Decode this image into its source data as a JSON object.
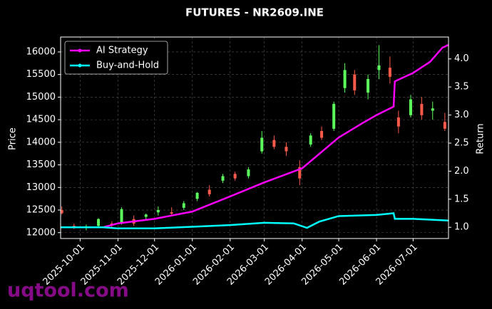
{
  "chart_data": {
    "type": "candlestick",
    "title": "FUTURES - NR2609.INE",
    "y_label": "Price",
    "y2_label": "Return",
    "watermark": "uqtool.com",
    "x": [
      "2025-09-16",
      "2025-09-26",
      "2025-10-06",
      "2025-10-16",
      "2025-10-27",
      "2025-11-04",
      "2025-11-14",
      "2025-11-24",
      "2025-12-04",
      "2025-12-15",
      "2025-12-25",
      "2026-01-05",
      "2026-01-15",
      "2026-01-26",
      "2026-02-05",
      "2026-02-16",
      "2026-02-27",
      "2026-03-09",
      "2026-03-19",
      "2026-03-30",
      "2026-04-08",
      "2026-04-17",
      "2026-04-27",
      "2026-05-06",
      "2026-05-14",
      "2026-05-25",
      "2026-06-03",
      "2026-06-12",
      "2026-06-19",
      "2026-06-29",
      "2026-07-08",
      "2026-07-17",
      "2026-07-27"
    ],
    "open": [
      12500,
      12150,
      12100,
      12150,
      12200,
      12200,
      12300,
      12350,
      12450,
      12450,
      12550,
      12750,
      12950,
      13150,
      13300,
      13250,
      13800,
      14050,
      13900,
      13450,
      13950,
      14250,
      14300,
      15200,
      15500,
      15100,
      15600,
      15650,
      14550,
      14600,
      14850,
      14700,
      14450
    ],
    "high": [
      12580,
      12200,
      12180,
      12320,
      12250,
      12560,
      12380,
      12420,
      12580,
      12560,
      12700,
      12900,
      13050,
      13300,
      13350,
      13450,
      14250,
      14150,
      14000,
      13600,
      14200,
      14350,
      14900,
      15750,
      15600,
      15500,
      16150,
      15900,
      14700,
      15050,
      15000,
      14900,
      14650
    ],
    "low": [
      12400,
      12080,
      12050,
      12120,
      12100,
      12180,
      12150,
      12280,
      12380,
      12400,
      12500,
      12700,
      12800,
      13100,
      13150,
      13200,
      13750,
      13850,
      13700,
      13050,
      13900,
      14050,
      14250,
      15100,
      15050,
      14950,
      15400,
      15300,
      14200,
      14550,
      14500,
      14500,
      14250
    ],
    "close": [
      12430,
      12120,
      12140,
      12300,
      12160,
      12520,
      12200,
      12400,
      12500,
      12420,
      12650,
      12880,
      12850,
      13250,
      13200,
      13400,
      14100,
      13900,
      13800,
      13200,
      14150,
      14100,
      14850,
      15600,
      15150,
      15400,
      15700,
      15450,
      14350,
      14950,
      14600,
      14750,
      14300
    ],
    "up_color": "#5cff5c",
    "down_color": "#ff5a4a",
    "series": [
      {
        "name": "AI Strategy",
        "color": "#ff00ff",
        "axis": "y2",
        "x": [
          "2025-09-15",
          "2025-10-20",
          "2025-11-01",
          "2025-12-01",
          "2026-01-01",
          "2026-02-01",
          "2026-03-01",
          "2026-04-01",
          "2026-05-01",
          "2026-05-20",
          "2026-06-01",
          "2026-06-15",
          "2026-06-16",
          "2026-07-01",
          "2026-07-15",
          "2026-07-25",
          "2026-07-30"
        ],
        "values": [
          1.0,
          1.0,
          1.07,
          1.15,
          1.28,
          1.55,
          1.8,
          2.05,
          2.6,
          2.85,
          3.0,
          3.15,
          3.6,
          3.75,
          3.95,
          4.2,
          4.25
        ]
      },
      {
        "name": "Buy-and-Hold",
        "color": "#00ffff",
        "axis": "y2",
        "x": [
          "2025-09-15",
          "2025-10-20",
          "2025-11-01",
          "2025-12-01",
          "2026-01-01",
          "2026-02-01",
          "2026-03-01",
          "2026-03-25",
          "2026-04-05",
          "2026-04-15",
          "2026-05-01",
          "2026-06-01",
          "2026-06-15",
          "2026-06-16",
          "2026-07-01",
          "2026-07-30"
        ],
        "values": [
          1.0,
          1.0,
          0.98,
          0.98,
          1.01,
          1.04,
          1.08,
          1.07,
          0.99,
          1.1,
          1.2,
          1.22,
          1.25,
          1.15,
          1.15,
          1.12
        ]
      }
    ],
    "xlim": [
      "2025-09-15",
      "2026-07-30"
    ],
    "xticks": [
      "2025-10-01",
      "2025-11-01",
      "2025-12-01",
      "2026-01-01",
      "2026-02-01",
      "2026-03-01",
      "2026-04-01",
      "2026-05-01",
      "2026-06-01",
      "2026-07-01"
    ],
    "ylim": [
      11870,
      16330
    ],
    "yticks": [
      12000,
      12500,
      13000,
      13500,
      14000,
      14500,
      15000,
      15500,
      16000
    ],
    "y2lim": [
      0.8,
      4.39
    ],
    "y2ticks": [
      {
        "value": 1,
        "label": "1.0"
      },
      1.5,
      {
        "value": 2,
        "label": "2.0"
      },
      2.5,
      {
        "value": 3,
        "label": "3.0"
      },
      3.5,
      {
        "value": 4,
        "label": "4.0"
      }
    ],
    "grid": true,
    "legend": "upper-left"
  }
}
